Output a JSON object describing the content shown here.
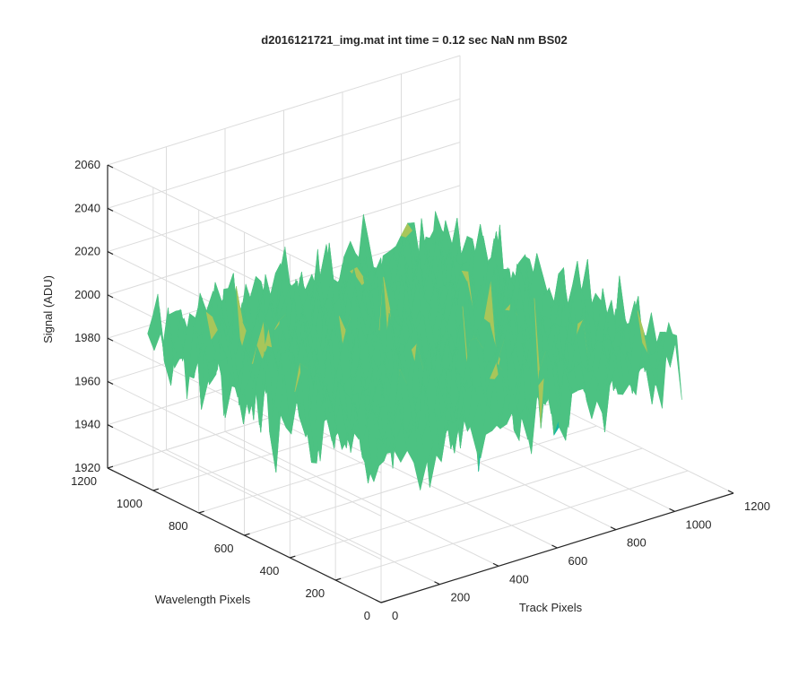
{
  "figure": {
    "title": "d2016121721_img.mat int time = 0.12 sec  NaN nm BS02"
  },
  "chart_data": {
    "type": "surface",
    "title": "d2016121721_img.mat int time = 0.12 sec  NaN nm BS02",
    "xlabel": "Track Pixels",
    "ylabel": "Wavelength Pixels",
    "zlabel": "Signal (ADU)",
    "xlim": [
      0,
      1200
    ],
    "ylim": [
      0,
      1200
    ],
    "zlim": [
      1920,
      2060
    ],
    "xticks": [
      0,
      200,
      400,
      600,
      800,
      1000,
      1200
    ],
    "yticks": [
      0,
      200,
      400,
      600,
      800,
      1000,
      1200
    ],
    "zticks": [
      1920,
      1940,
      1960,
      1980,
      2000,
      2020,
      2040,
      2060
    ],
    "xtick_labels": [
      "0",
      "200",
      "400",
      "600",
      "800",
      "1000",
      "1200"
    ],
    "ytick_labels": [
      "0",
      "200",
      "400",
      "600",
      "800",
      "1000",
      "1200"
    ],
    "ztick_labels": [
      "1920",
      "1940",
      "1960",
      "1980",
      "2000",
      "2020",
      "2040",
      "2060"
    ],
    "surface_extent": {
      "x": [
        0,
        1024
      ],
      "y": [
        0,
        1024
      ]
    },
    "surface_mean": 1990,
    "surface_min": 1928,
    "surface_max": 2048,
    "grid": true,
    "colormap": [
      "#1f8fc9",
      "#13b7a6",
      "#4cc282",
      "#a8c65a",
      "#d9be4a"
    ]
  }
}
